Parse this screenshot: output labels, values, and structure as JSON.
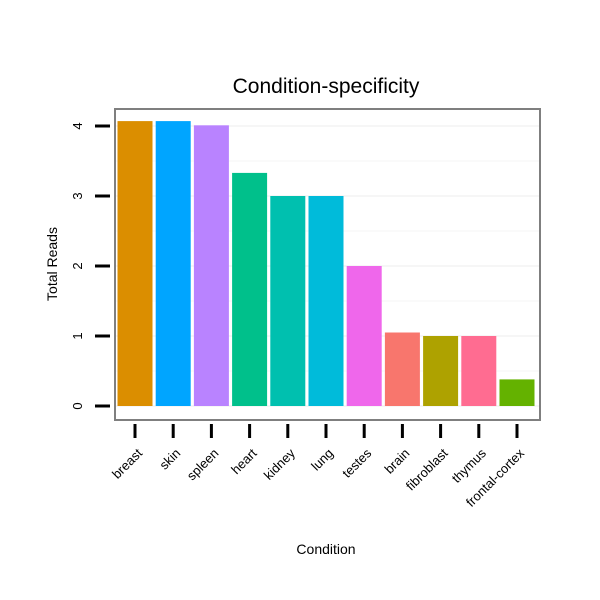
{
  "chart_data": {
    "type": "bar",
    "title": "Condition-specificity",
    "xlabel": "Condition",
    "ylabel": "Total Reads",
    "categories": [
      "breast",
      "skin",
      "spleen",
      "heart",
      "kidney",
      "lung",
      "testes",
      "brain",
      "fibroblast",
      "thymus",
      "frontal-cortex"
    ],
    "values": [
      4.07,
      4.07,
      4.01,
      3.33,
      3.0,
      3.0,
      2.0,
      1.05,
      1.0,
      1.0,
      0.38
    ],
    "colors": [
      "#DB8E00",
      "#00A5FF",
      "#B983FF",
      "#00C08B",
      "#00C0AF",
      "#00BBDA",
      "#EF67EB",
      "#F8766D",
      "#AEA200",
      "#FF6C91",
      "#64B200"
    ],
    "yticks": [
      0,
      1,
      2,
      3,
      4
    ],
    "ylim": [
      -0.05,
      4.25
    ],
    "grid": true,
    "legend": "none"
  }
}
